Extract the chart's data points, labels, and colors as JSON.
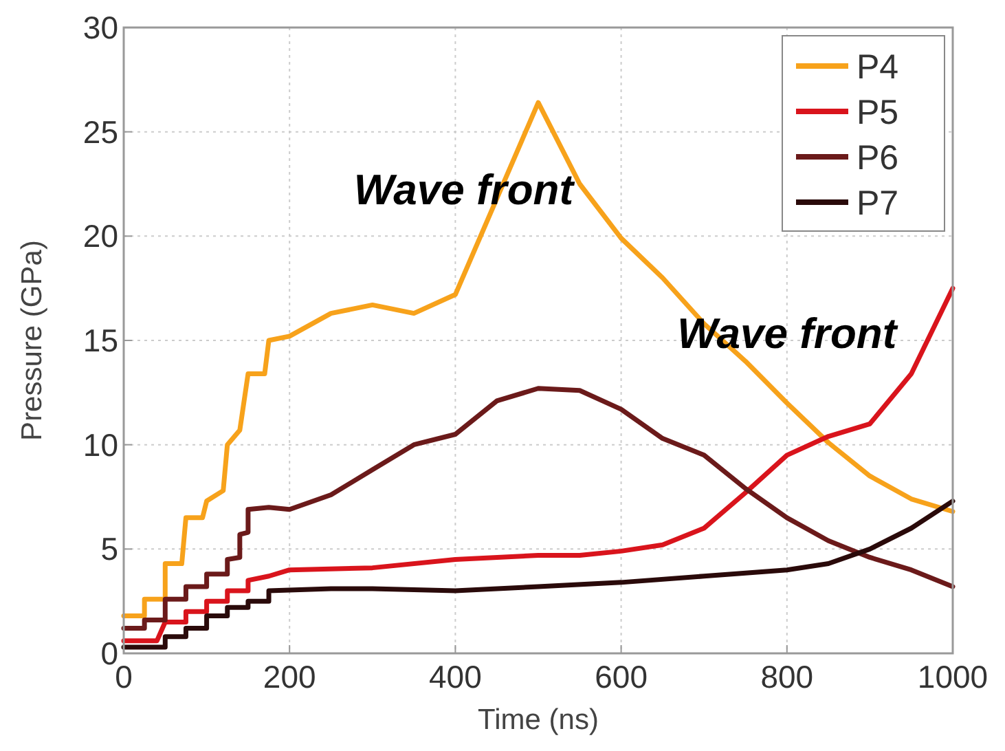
{
  "chart_data": {
    "type": "line",
    "xlabel": "Time (ns)",
    "ylabel": "Pressure (GPa)",
    "xlim": [
      0,
      1000
    ],
    "xticks": [
      0,
      200,
      400,
      600,
      800,
      1000
    ],
    "ylim": [
      0,
      30
    ],
    "yticks": [
      0,
      5,
      10,
      15,
      20,
      25,
      30
    ],
    "grid": true,
    "legend": "top right",
    "line_style": "solid",
    "annotations": [
      "Wave front",
      "Wave front"
    ],
    "series": [
      {
        "name": "P4",
        "color": "#f7a21b",
        "x": [
          0,
          25,
          25,
          50,
          50,
          70,
          75,
          95,
          100,
          120,
          125,
          140,
          150,
          170,
          175,
          200,
          250,
          300,
          350,
          400,
          500,
          550,
          600,
          650,
          700,
          750,
          800,
          850,
          900,
          950,
          1000
        ],
        "values": [
          1.8,
          1.8,
          2.6,
          2.6,
          4.3,
          4.3,
          6.5,
          6.5,
          7.3,
          7.8,
          10,
          10.7,
          13.4,
          13.4,
          15,
          15.2,
          16.3,
          16.7,
          16.3,
          17.2,
          26.4,
          22.5,
          19.9,
          18,
          15.8,
          14,
          12,
          10.1,
          8.5,
          7.4,
          6.8
        ]
      },
      {
        "name": "P5",
        "color": "#d9141c",
        "x": [
          0,
          40,
          50,
          75,
          75,
          100,
          100,
          125,
          125,
          150,
          150,
          175,
          200,
          300,
          400,
          500,
          550,
          600,
          650,
          700,
          750,
          800,
          850,
          900,
          950,
          1000
        ],
        "values": [
          0.6,
          0.6,
          1.5,
          1.5,
          2,
          2,
          2.5,
          2.5,
          3,
          3,
          3.5,
          3.7,
          4,
          4.1,
          4.5,
          4.7,
          4.7,
          4.9,
          5.2,
          6,
          7.7,
          9.5,
          10.4,
          11,
          13.4,
          17.5
        ]
      },
      {
        "name": "P6",
        "color": "#6b1a1a",
        "x": [
          0,
          25,
          25,
          50,
          50,
          75,
          75,
          100,
          100,
          125,
          125,
          140,
          140,
          150,
          150,
          175,
          200,
          250,
          300,
          350,
          400,
          450,
          500,
          550,
          600,
          650,
          700,
          750,
          800,
          850,
          900,
          950,
          1000
        ],
        "values": [
          1.2,
          1.2,
          1.6,
          1.6,
          2.6,
          2.6,
          3.2,
          3.2,
          3.8,
          3.8,
          4.5,
          4.6,
          5.7,
          5.8,
          6.9,
          7,
          6.9,
          7.6,
          8.8,
          10,
          10.5,
          12.1,
          12.7,
          12.6,
          11.7,
          10.3,
          9.5,
          7.9,
          6.5,
          5.4,
          4.6,
          4,
          3.2
        ]
      },
      {
        "name": "P7",
        "color": "#2a0a0a",
        "x": [
          0,
          50,
          50,
          75,
          75,
          100,
          100,
          125,
          125,
          150,
          150,
          175,
          175,
          250,
          300,
          400,
          500,
          600,
          700,
          800,
          850,
          900,
          950,
          1000
        ],
        "values": [
          0.3,
          0.3,
          0.8,
          0.8,
          1.2,
          1.2,
          1.8,
          1.8,
          2.2,
          2.2,
          2.5,
          2.5,
          3,
          3.1,
          3.1,
          3,
          3.2,
          3.4,
          3.7,
          4,
          4.3,
          5,
          6,
          7.3
        ]
      }
    ]
  }
}
